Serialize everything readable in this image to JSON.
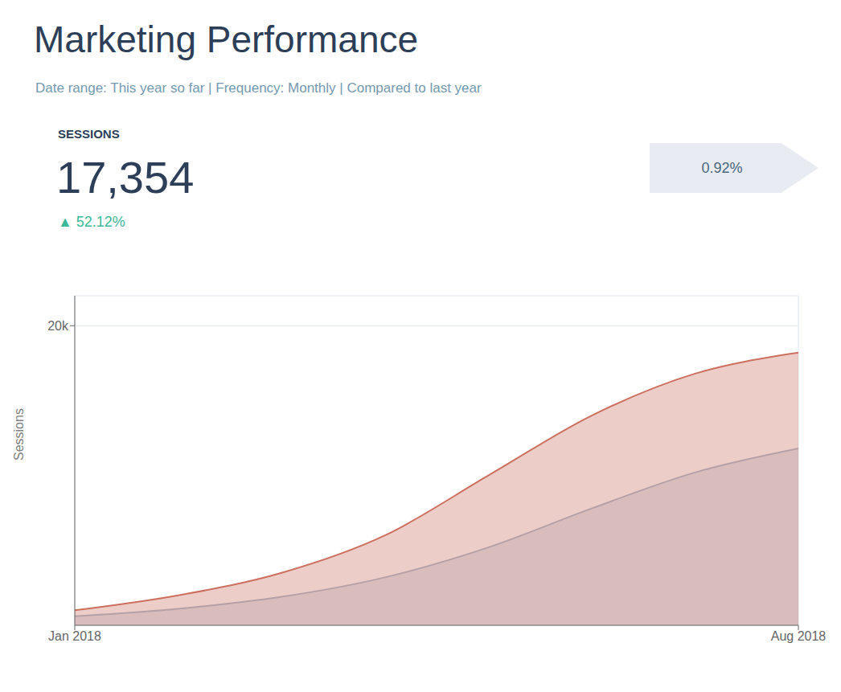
{
  "chart_data": {
    "type": "area",
    "title": "Marketing Performance",
    "subtitle": "Date range: This year so far  |  Frequency: Monthly  |  Compared to last year",
    "annotations": [
      "SESSIONS",
      "17,354",
      "▲ 52.12%",
      "0.92%"
    ],
    "x": [
      0,
      1,
      2,
      3,
      4,
      5,
      6,
      7
    ],
    "series": [
      {
        "color": "#aabbcc",
        "values": [
          600,
          1100,
          1900,
          3200,
          5200,
          7800,
          10200,
          11800
        ]
      },
      {
        "color": "#cc7060",
        "values": [
          1000,
          2000,
          3500,
          6000,
          10000,
          14000,
          16800,
          18200
        ]
      }
    ],
    "ylabel": "Sessions",
    "xlim": [
      0,
      7
    ],
    "xticks": [
      {
        "value": 0,
        "label": "Jan 2018"
      },
      {
        "value": 7,
        "label": "Aug 2018"
      }
    ],
    "ylim": [
      0,
      22000
    ],
    "yticks": [
      {
        "value": 20000,
        "label": "20k"
      }
    ],
    "grid": true
  }
}
